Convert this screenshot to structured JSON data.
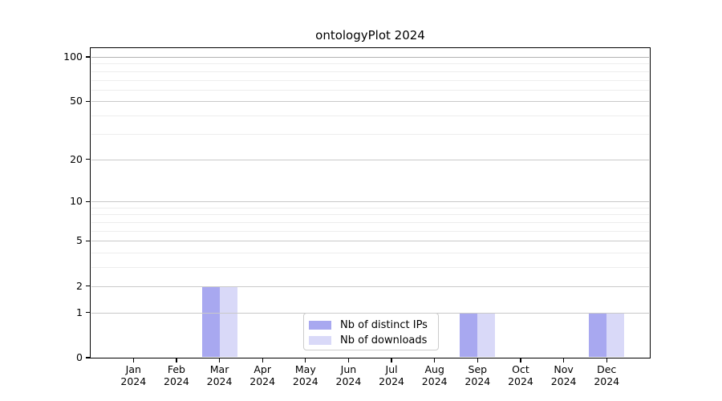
{
  "window": {
    "title": "ontologyPlot 2024"
  },
  "chart_data": {
    "type": "bar",
    "title": "ontologyPlot 2024",
    "categories": [
      "Jan",
      "Feb",
      "Mar",
      "Apr",
      "May",
      "Jun",
      "Jul",
      "Aug",
      "Sep",
      "Oct",
      "Nov",
      "Dec"
    ],
    "category_year": "2024",
    "series": [
      {
        "name": "Nb of distinct IPs",
        "color": "#a8a8f0",
        "values": [
          0,
          0,
          2,
          0,
          0,
          0,
          0,
          0,
          1,
          0,
          0,
          1
        ]
      },
      {
        "name": "Nb of downloads",
        "color": "#d9d9f8",
        "values": [
          0,
          0,
          2,
          0,
          0,
          0,
          0,
          0,
          1,
          0,
          0,
          1
        ]
      }
    ],
    "xlabel": "",
    "ylabel": "",
    "yscale": "log1p",
    "ylim": [
      0,
      115
    ],
    "yticks": [
      0,
      1,
      2,
      5,
      10,
      20,
      50,
      100
    ],
    "yticks_minor": [
      3,
      4,
      6,
      7,
      8,
      9,
      30,
      40,
      60,
      70,
      80,
      90
    ],
    "grid": "horizontal",
    "grid_above_bars": true,
    "legend_position": "bottom-center",
    "colors": {
      "axis": "#000000",
      "grid_major": "#c9c9c9",
      "grid_minor": "#ededed",
      "grid_top": "#b3b3b3",
      "background": "#ffffff",
      "legend_border": "#cccccc"
    }
  }
}
